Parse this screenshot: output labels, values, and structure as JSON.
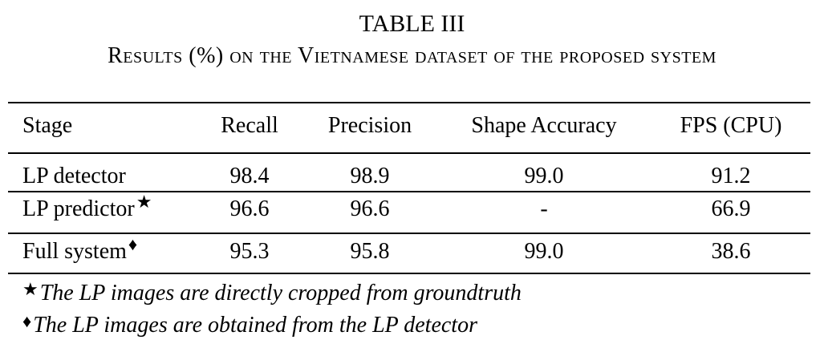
{
  "table": {
    "number": "TABLE III",
    "caption": "Results (%) on the Vietnamese dataset of the proposed system",
    "headers": [
      "Stage",
      "Recall",
      "Precision",
      "Shape Accuracy",
      "FPS (CPU)"
    ],
    "rows": [
      {
        "stage": "LP detector",
        "mark": "",
        "recall": "98.4",
        "precision": "98.9",
        "shape_accuracy": "99.0",
        "fps": "91.2"
      },
      {
        "stage": "LP predictor",
        "mark": "★",
        "recall": "96.6",
        "precision": "96.6",
        "shape_accuracy": "-",
        "fps": "66.9"
      },
      {
        "stage": "Full system",
        "mark": "♦",
        "recall": "95.3",
        "precision": "95.8",
        "shape_accuracy": "99.0",
        "fps": "38.6"
      }
    ],
    "notes": [
      {
        "symbol": "★",
        "text": "The LP images are directly cropped from groundtruth"
      },
      {
        "symbol": "♦",
        "text": "The LP images are obtained from the LP detector"
      }
    ]
  }
}
